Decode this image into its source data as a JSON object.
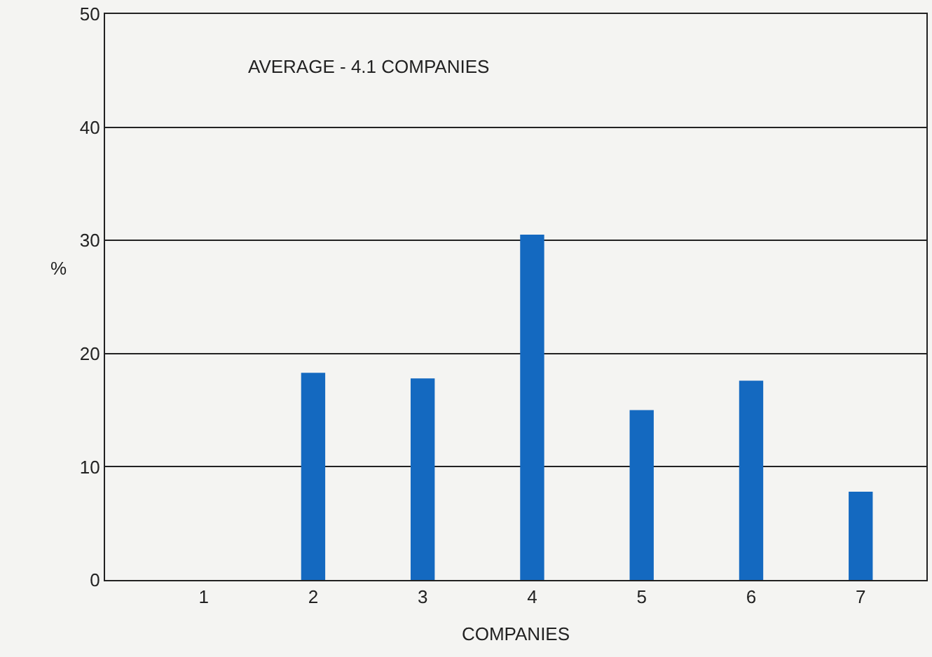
{
  "chart_data": {
    "type": "bar",
    "xlabel": "COMPANIES",
    "ylabel": "%",
    "annotations": [
      "AVERAGE - 4.1 COMPANIES"
    ],
    "categories": [
      "1",
      "2",
      "3",
      "4",
      "5",
      "6",
      "7"
    ],
    "values": [
      0,
      18.3,
      17.8,
      30.5,
      15.0,
      17.6,
      7.8
    ],
    "color": "#1469c0",
    "ylim": [
      0,
      50
    ],
    "yticks": [
      0,
      10,
      20,
      30,
      40,
      50
    ],
    "grid": "y"
  }
}
